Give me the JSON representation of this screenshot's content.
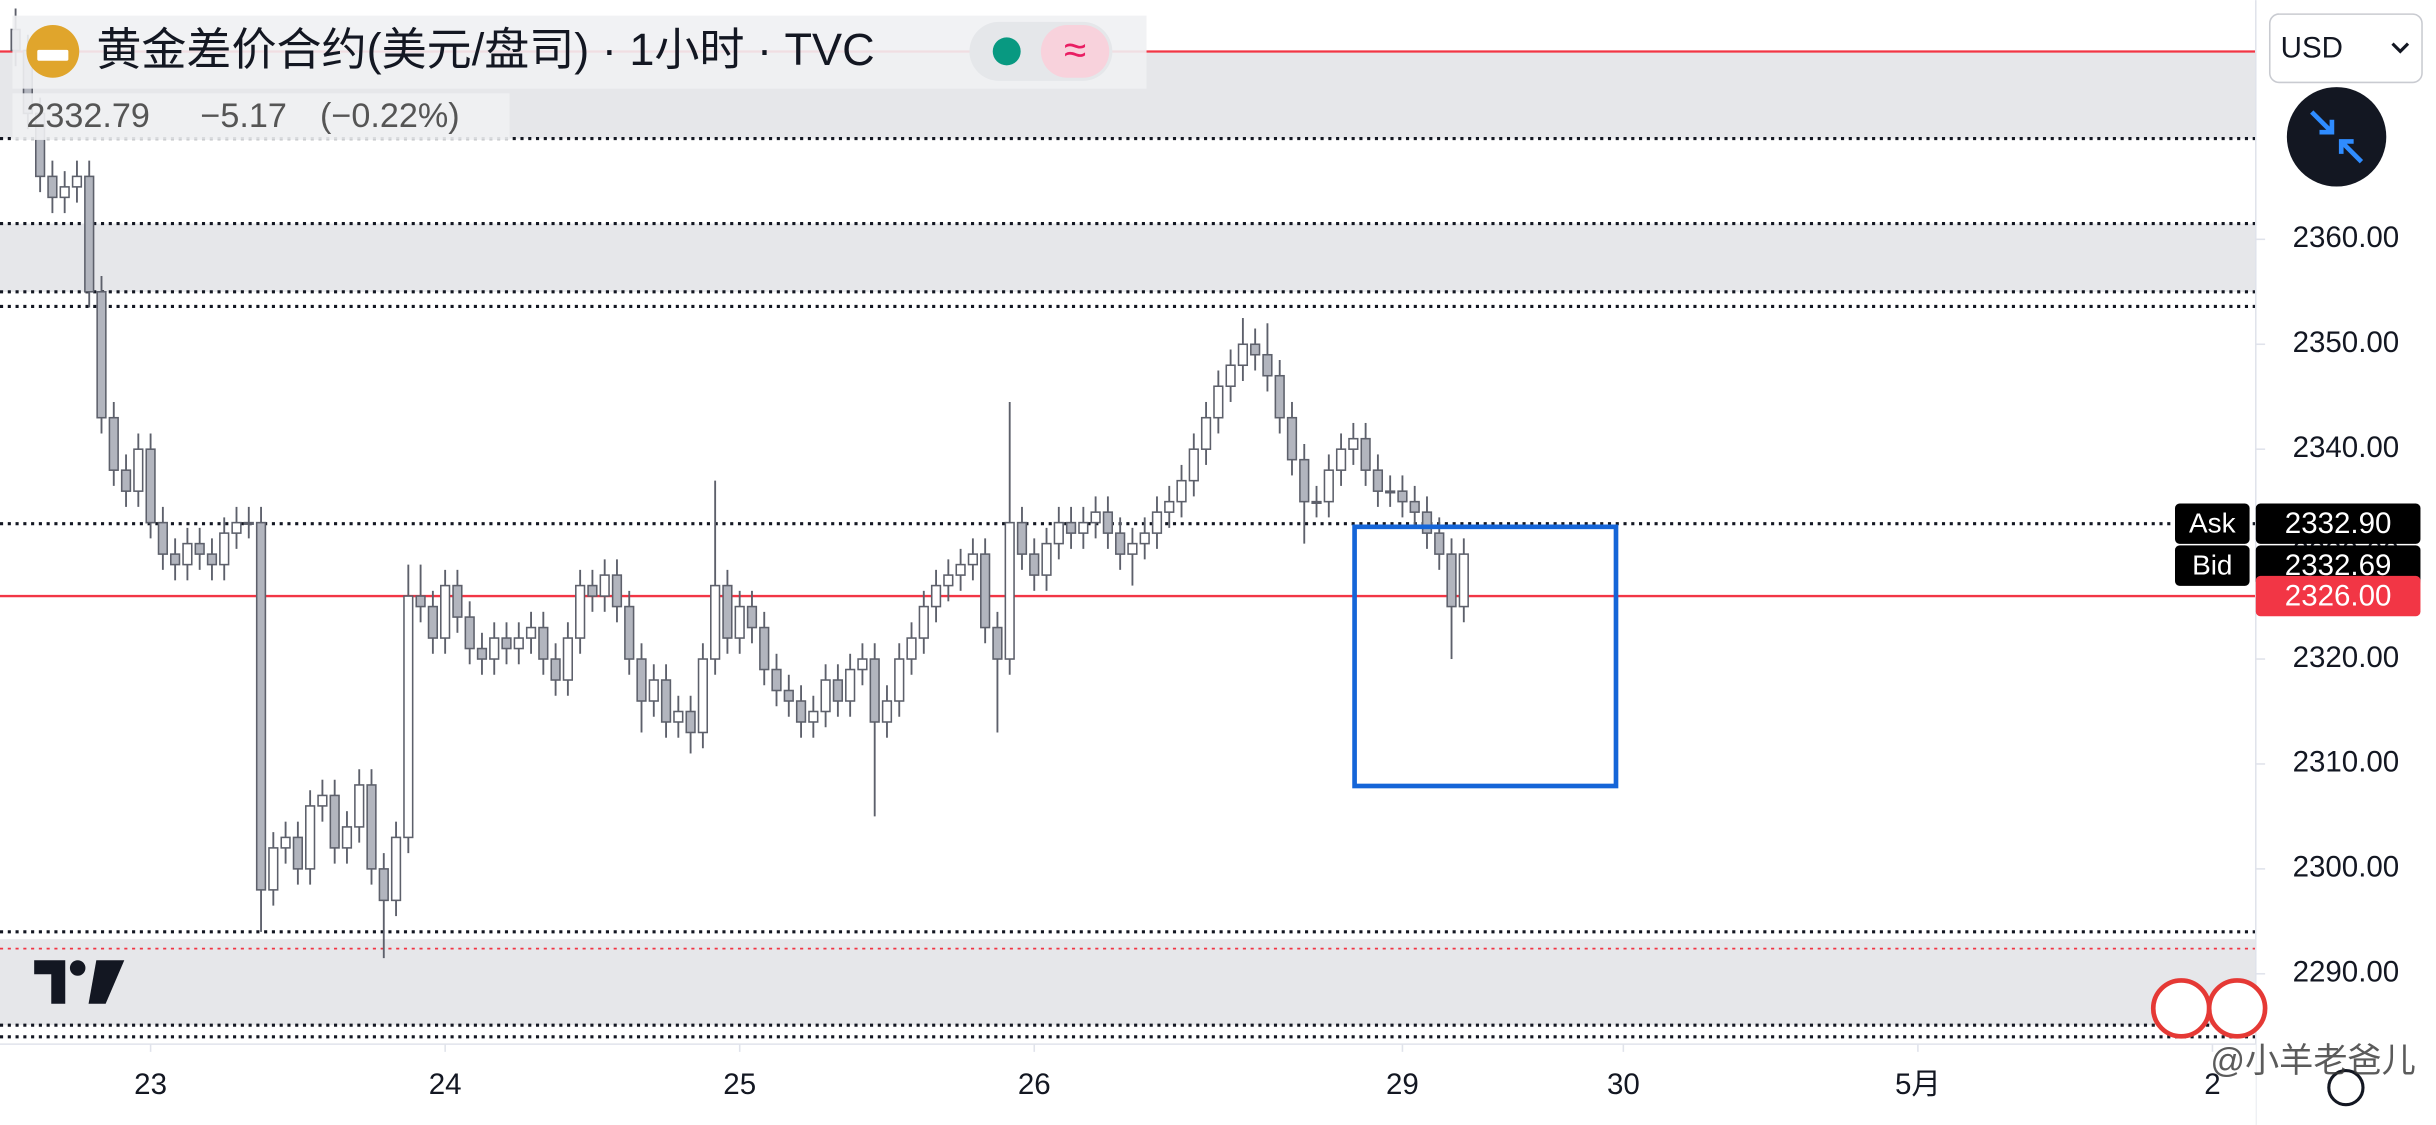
{
  "chart_data": {
    "type": "candlestick",
    "title": "黄金差价合约(美元/盘司) · 1小时 · TVC",
    "last_price": "2332.79",
    "change": "−5.17",
    "change_percent": "(−0.22%)",
    "currency": "USD",
    "watermark": "@小羊老爸儿",
    "open": [
      2380,
      2378,
      2372,
      2366,
      2364,
      2365,
      2366,
      2355,
      2343,
      2338,
      2336,
      2340,
      2333,
      2330,
      2329,
      2331,
      2330,
      2329,
      2332,
      2333,
      2333,
      2298,
      2302,
      2303,
      2300,
      2306,
      2307,
      2302,
      2304,
      2308,
      2300,
      2297,
      2303,
      2326,
      2325,
      2322,
      2327,
      2324,
      2321,
      2320,
      2322,
      2321,
      2322,
      2323,
      2320,
      2318,
      2322,
      2327,
      2326,
      2328,
      2325,
      2320,
      2316,
      2318,
      2314,
      2315,
      2313,
      2320,
      2327,
      2322,
      2325,
      2323,
      2319,
      2317,
      2316,
      2314,
      2315,
      2318,
      2316,
      2319,
      2320,
      2314,
      2316,
      2320,
      2322,
      2325,
      2327,
      2328,
      2329,
      2330,
      2323,
      2320,
      2333,
      2330,
      2328,
      2331,
      2333,
      2332,
      2333,
      2334,
      2332,
      2330,
      2331,
      2332,
      2334,
      2335,
      2337,
      2340,
      2343,
      2346,
      2348,
      2350,
      2349,
      2347,
      2343,
      2339,
      2335,
      2335,
      2338,
      2340,
      2341,
      2338,
      2336,
      2336,
      2335,
      2334,
      2332,
      2330,
      2325
    ],
    "high": [
      2382,
      2379.5,
      2373.5,
      2367.5,
      2366.5,
      2367.5,
      2367.5,
      2356.5,
      2344.5,
      2339.5,
      2341.5,
      2341.5,
      2334.5,
      2331.5,
      2332.5,
      2332.5,
      2331.5,
      2333.5,
      2334.5,
      2334.5,
      2334.5,
      2303.5,
      2304.5,
      2304.5,
      2307.5,
      2308.5,
      2308.5,
      2305.5,
      2309.5,
      2309.5,
      2301.5,
      2304.5,
      2329,
      2329,
      2326.5,
      2328.5,
      2328.5,
      2325.5,
      2322.5,
      2323.5,
      2323.5,
      2323.5,
      2324.5,
      2324.5,
      2321.5,
      2323.5,
      2328.5,
      2328.5,
      2329.5,
      2329.5,
      2326.5,
      2321.5,
      2319.5,
      2319.5,
      2316.5,
      2316.5,
      2321.5,
      2337,
      2328.5,
      2326.5,
      2326.5,
      2324.5,
      2320.5,
      2318.5,
      2317.5,
      2316.5,
      2319.5,
      2319.5,
      2320.5,
      2321.5,
      2321.5,
      2317.5,
      2321.5,
      2323.5,
      2326.5,
      2328.5,
      2329.5,
      2330.5,
      2331.5,
      2331.5,
      2324.5,
      2344.5,
      2334.5,
      2331.5,
      2332.5,
      2334.5,
      2334.5,
      2334.5,
      2335.5,
      2335.5,
      2333.5,
      2332.5,
      2333.5,
      2335.5,
      2336.5,
      2338.5,
      2341.5,
      2344.5,
      2347.5,
      2349.5,
      2352.5,
      2351.5,
      2352,
      2348.5,
      2344.5,
      2340.5,
      2336.5,
      2339.5,
      2341.5,
      2342.5,
      2342.5,
      2339.5,
      2337.5,
      2337.5,
      2336.5,
      2335.5,
      2333.5,
      2331.5,
      2331.5
    ],
    "low": [
      2376.5,
      2370.5,
      2364.5,
      2362.5,
      2362.5,
      2363.5,
      2353.5,
      2341.5,
      2336.5,
      2334.5,
      2334.5,
      2331.5,
      2328.5,
      2327.5,
      2327.5,
      2328.5,
      2327.5,
      2327.5,
      2330.5,
      2331.5,
      2294,
      2296.5,
      2300.5,
      2298.5,
      2298.5,
      2304.5,
      2300.5,
      2300.5,
      2302.5,
      2298.5,
      2291.5,
      2295.5,
      2301.5,
      2323.5,
      2320.5,
      2320.5,
      2322.5,
      2319.5,
      2318.5,
      2318.5,
      2319.5,
      2319.5,
      2320.5,
      2318.5,
      2316.5,
      2316.5,
      2320.5,
      2324.5,
      2324.5,
      2323.5,
      2318.5,
      2313,
      2314.5,
      2312.5,
      2312.5,
      2311,
      2311.5,
      2318.5,
      2320.5,
      2320.5,
      2321.5,
      2317.5,
      2315.5,
      2314.5,
      2312.5,
      2312.5,
      2313.5,
      2314.5,
      2314.5,
      2317.5,
      2305,
      2312.5,
      2314.5,
      2318.5,
      2320.5,
      2323.5,
      2325.5,
      2326.5,
      2327.5,
      2321.5,
      2313,
      2318.5,
      2328.5,
      2326.5,
      2326.5,
      2329.5,
      2330.5,
      2330.5,
      2331.5,
      2330.5,
      2328.5,
      2327,
      2329.5,
      2330.5,
      2332.5,
      2333.5,
      2335.5,
      2338.5,
      2341.5,
      2344.5,
      2346.5,
      2347.5,
      2345.5,
      2341.5,
      2337.5,
      2331,
      2333.5,
      2333.5,
      2336.5,
      2338.5,
      2336.5,
      2334.5,
      2334.5,
      2333.5,
      2332.5,
      2330.5,
      2328.5,
      2320,
      2323.5
    ],
    "close": [
      2378,
      2372,
      2366,
      2364,
      2365,
      2366,
      2355,
      2343,
      2338,
      2336,
      2340,
      2333,
      2330,
      2329,
      2331,
      2330,
      2329,
      2332,
      2333,
      2333,
      2298,
      2302,
      2303,
      2300,
      2306,
      2307,
      2302,
      2304,
      2308,
      2300,
      2297,
      2303,
      2326,
      2325,
      2322,
      2327,
      2324,
      2321,
      2320,
      2322,
      2321,
      2322,
      2323,
      2320,
      2318,
      2322,
      2327,
      2326,
      2328,
      2325,
      2320,
      2316,
      2318,
      2314,
      2315,
      2313,
      2320,
      2327,
      2322,
      2325,
      2323,
      2319,
      2317,
      2316,
      2314,
      2315,
      2318,
      2316,
      2319,
      2320,
      2314,
      2316,
      2320,
      2322,
      2325,
      2327,
      2328,
      2329,
      2330,
      2323,
      2320,
      2333,
      2330,
      2328,
      2331,
      2333,
      2332,
      2333,
      2334,
      2332,
      2330,
      2331,
      2332,
      2334,
      2335,
      2337,
      2340,
      2343,
      2346,
      2348,
      2350,
      2349,
      2347,
      2343,
      2339,
      2335,
      2335,
      2338,
      2340,
      2341,
      2338,
      2336,
      2336,
      2335,
      2334,
      2332,
      2330,
      2325,
      2330
    ],
    "up_color": "#ffffff",
    "down_color": "#b2b5be",
    "edge_color": "#5d606b",
    "xlim": [
      -1.27,
      182.53
    ],
    "xticks": [
      {
        "value": 11,
        "label": "23"
      },
      {
        "value": 35,
        "label": "24"
      },
      {
        "value": 59,
        "label": "25"
      },
      {
        "value": 83,
        "label": "26"
      },
      {
        "value": 113,
        "label": "29"
      },
      {
        "value": 131,
        "label": "30"
      },
      {
        "value": 155,
        "label": "5月"
      },
      {
        "value": 179,
        "label": "2"
      }
    ],
    "ylim": [
      2283.3,
      2382.8
    ],
    "yticks": [
      {
        "value": 2290,
        "label": "2290.00"
      },
      {
        "value": 2300,
        "label": "2300.00"
      },
      {
        "value": 2310,
        "label": "2310.00"
      },
      {
        "value": 2320,
        "label": "2320.00"
      },
      {
        "value": 2330,
        "label": "2330.00"
      },
      {
        "value": 2340,
        "label": "2340.00"
      },
      {
        "value": 2350,
        "label": "2350.00"
      },
      {
        "value": 2360,
        "label": "2360.00"
      }
    ],
    "zones": [
      [
        2369.6,
        2377.9
      ],
      [
        2355,
        2361.5
      ],
      [
        2285.1,
        2293.3
      ]
    ],
    "dotted_levels": [
      2369.6,
      2361.5,
      2355,
      2353.6,
      2294,
      2285.1,
      2284,
      2332.9
    ],
    "red_levels": [
      2377.9,
      2326
    ],
    "red_dotted_levels": [
      2292.4
    ],
    "box": {
      "x": [
        109.1,
        130.4
      ],
      "y": [
        2307.9,
        2332.6
      ],
      "color": "#1565d8"
    },
    "price_labels": [
      {
        "name": "Ask",
        "value": 2332.9,
        "label": "2332.90",
        "color": "#000000"
      },
      {
        "name": "Bid",
        "value": 2332.69,
        "label": "2332.69",
        "color": "#000000"
      },
      {
        "value": 2326,
        "label": "2326.00",
        "color": "#f23645"
      }
    ]
  }
}
